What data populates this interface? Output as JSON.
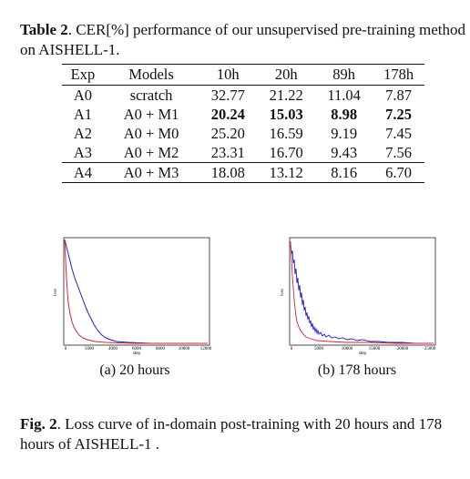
{
  "table_caption": {
    "label": "Table 2",
    "text": ". CER[%] performance of our unsupervised pre-training method on AISHELL-1."
  },
  "table": {
    "headers": [
      "Exp",
      "Models",
      "10h",
      "20h",
      "89h",
      "178h"
    ],
    "rows": [
      [
        "A0",
        "scratch",
        "32.77",
        "21.22",
        "11.04",
        "7.87"
      ],
      [
        "A1",
        "A0 + M1",
        "20.24",
        "15.03",
        "8.98",
        "7.25"
      ],
      [
        "A2",
        "A0 + M0",
        "25.20",
        "16.59",
        "9.19",
        "7.45"
      ],
      [
        "A3",
        "A0 + M2",
        "23.31",
        "16.70",
        "9.43",
        "7.56"
      ],
      [
        "A4",
        "A0 + M3",
        "18.08",
        "13.12",
        "8.16",
        "6.70"
      ]
    ],
    "bold_row": "A1"
  },
  "figures": [
    {
      "subcaption": "(a) 20 hours",
      "xlabel": "step",
      "ylabel": "loss",
      "x_ticks": [
        "0",
        "5000",
        "4000",
        "6000",
        "8000",
        "10000",
        "12000"
      ],
      "colors": {
        "blue": "#1f1fd6",
        "red": "#e0202a"
      }
    },
    {
      "subcaption": "(b) 178 hours",
      "xlabel": "step",
      "ylabel": "loss",
      "x_ticks": [
        "0",
        "5000",
        "10000",
        "15000",
        "20000",
        "25000"
      ],
      "colors": {
        "blue": "#1f1fd6",
        "red": "#e0202a"
      }
    }
  ],
  "fig_caption": {
    "label": "Fig. 2",
    "text": ". Loss curve of in-domain post-training with 20 hours and 178 hours of AISHELL-1 ."
  }
}
